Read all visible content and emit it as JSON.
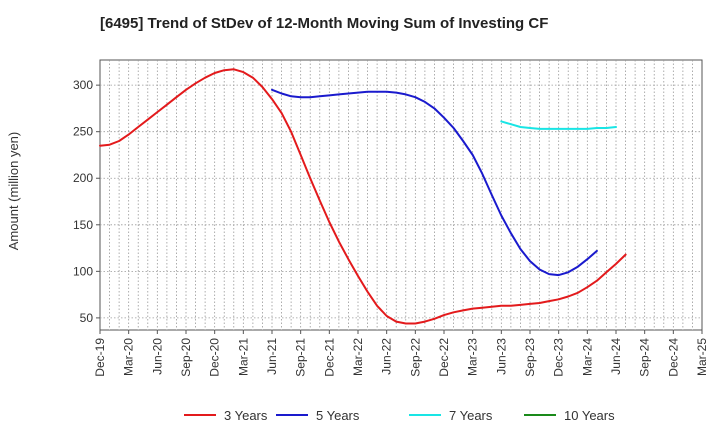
{
  "chart_data": {
    "type": "line",
    "title": "[6495]  Trend of StDev of 12-Month Moving Sum of Investing CF",
    "xlabel": "",
    "ylabel": "Amount (million yen)",
    "ylim": [
      37,
      327
    ],
    "yticks": [
      50,
      100,
      150,
      200,
      250,
      300
    ],
    "x_range": [
      "2019-12",
      "2025-03"
    ],
    "x_tick_labels": [
      "Dec-19",
      "Mar-20",
      "Jun-20",
      "Sep-20",
      "Dec-20",
      "Mar-21",
      "Jun-21",
      "Sep-21",
      "Dec-21",
      "Mar-22",
      "Jun-22",
      "Sep-22",
      "Dec-22",
      "Mar-23",
      "Jun-23",
      "Sep-23",
      "Dec-23",
      "Mar-24",
      "Jun-24",
      "Sep-24",
      "Dec-24",
      "Mar-25"
    ],
    "grid": true,
    "legend_position": "bottom",
    "series": [
      {
        "name": "3 Years",
        "color": "#e31a1c",
        "points": [
          [
            "2019-12",
            235
          ],
          [
            "2020-01",
            236
          ],
          [
            "2020-02",
            240
          ],
          [
            "2020-03",
            247
          ],
          [
            "2020-04",
            255
          ],
          [
            "2020-05",
            263
          ],
          [
            "2020-06",
            271
          ],
          [
            "2020-07",
            279
          ],
          [
            "2020-08",
            287
          ],
          [
            "2020-09",
            295
          ],
          [
            "2020-10",
            302
          ],
          [
            "2020-11",
            308
          ],
          [
            "2020-12",
            313
          ],
          [
            "2021-01",
            316
          ],
          [
            "2021-02",
            317
          ],
          [
            "2021-03",
            314
          ],
          [
            "2021-04",
            308
          ],
          [
            "2021-05",
            298
          ],
          [
            "2021-06",
            285
          ],
          [
            "2021-07",
            270
          ],
          [
            "2021-08",
            250
          ],
          [
            "2021-09",
            225
          ],
          [
            "2021-10",
            200
          ],
          [
            "2021-11",
            176
          ],
          [
            "2021-12",
            153
          ],
          [
            "2022-01",
            132
          ],
          [
            "2022-02",
            113
          ],
          [
            "2022-03",
            95
          ],
          [
            "2022-04",
            78
          ],
          [
            "2022-05",
            63
          ],
          [
            "2022-06",
            52
          ],
          [
            "2022-07",
            46
          ],
          [
            "2022-08",
            44
          ],
          [
            "2022-09",
            44
          ],
          [
            "2022-10",
            46
          ],
          [
            "2022-11",
            49
          ],
          [
            "2022-12",
            53
          ],
          [
            "2023-01",
            56
          ],
          [
            "2023-02",
            58
          ],
          [
            "2023-03",
            60
          ],
          [
            "2023-04",
            61
          ],
          [
            "2023-05",
            62
          ],
          [
            "2023-06",
            63
          ],
          [
            "2023-07",
            63
          ],
          [
            "2023-08",
            64
          ],
          [
            "2023-09",
            65
          ],
          [
            "2023-10",
            66
          ],
          [
            "2023-11",
            68
          ],
          [
            "2023-12",
            70
          ],
          [
            "2024-01",
            73
          ],
          [
            "2024-02",
            77
          ],
          [
            "2024-03",
            83
          ],
          [
            "2024-04",
            90
          ],
          [
            "2024-05",
            99
          ],
          [
            "2024-06",
            108
          ],
          [
            "2024-07",
            118
          ]
        ]
      },
      {
        "name": "5 Years",
        "color": "#1a1acd",
        "points": [
          [
            "2021-06",
            295
          ],
          [
            "2021-07",
            291
          ],
          [
            "2021-08",
            288
          ],
          [
            "2021-09",
            287
          ],
          [
            "2021-10",
            287
          ],
          [
            "2021-11",
            288
          ],
          [
            "2021-12",
            289
          ],
          [
            "2022-01",
            290
          ],
          [
            "2022-02",
            291
          ],
          [
            "2022-03",
            292
          ],
          [
            "2022-04",
            293
          ],
          [
            "2022-05",
            293
          ],
          [
            "2022-06",
            293
          ],
          [
            "2022-07",
            292
          ],
          [
            "2022-08",
            290
          ],
          [
            "2022-09",
            287
          ],
          [
            "2022-10",
            282
          ],
          [
            "2022-11",
            275
          ],
          [
            "2022-12",
            265
          ],
          [
            "2023-01",
            254
          ],
          [
            "2023-02",
            240
          ],
          [
            "2023-03",
            225
          ],
          [
            "2023-04",
            205
          ],
          [
            "2023-05",
            182
          ],
          [
            "2023-06",
            160
          ],
          [
            "2023-07",
            141
          ],
          [
            "2023-08",
            124
          ],
          [
            "2023-09",
            111
          ],
          [
            "2023-10",
            102
          ],
          [
            "2023-11",
            97
          ],
          [
            "2023-12",
            96
          ],
          [
            "2024-01",
            99
          ],
          [
            "2024-02",
            105
          ],
          [
            "2024-03",
            113
          ],
          [
            "2024-04",
            122
          ]
        ]
      },
      {
        "name": "7 Years",
        "color": "#19e5e5",
        "points": [
          [
            "2023-06",
            261
          ],
          [
            "2023-07",
            258
          ],
          [
            "2023-08",
            255
          ],
          [
            "2023-09",
            254
          ],
          [
            "2023-10",
            253
          ],
          [
            "2023-11",
            253
          ],
          [
            "2023-12",
            253
          ],
          [
            "2024-01",
            253
          ],
          [
            "2024-02",
            253
          ],
          [
            "2024-03",
            253
          ],
          [
            "2024-04",
            254
          ],
          [
            "2024-05",
            254
          ],
          [
            "2024-06",
            255
          ]
        ]
      },
      {
        "name": "10 Years",
        "color": "#1a8a1a",
        "points": []
      }
    ]
  }
}
